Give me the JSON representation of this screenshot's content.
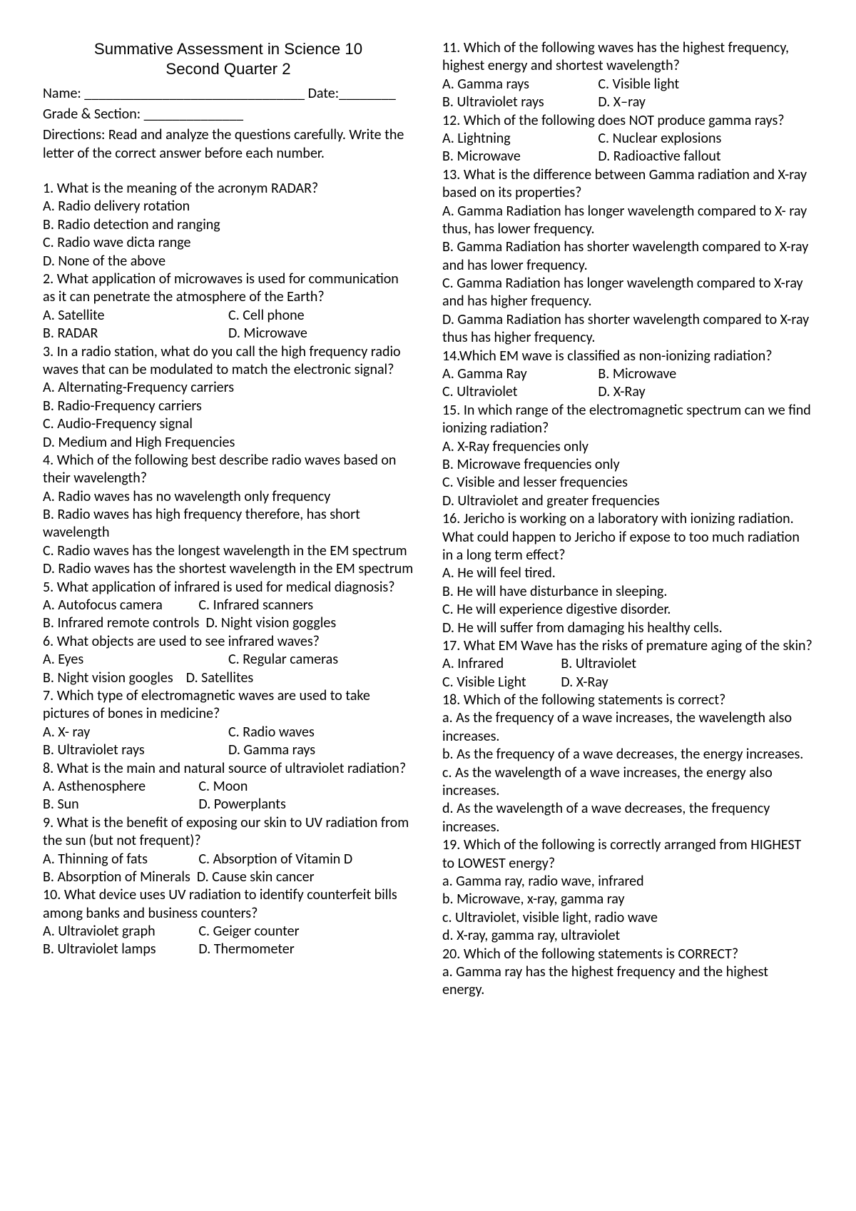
{
  "title_line1": "Summative Assessment in Science 10",
  "title_line2": "Second Quarter 2",
  "name_label": "Name: _______________________________",
  "date_label": "Date:________",
  "grade_label": "Grade & Section: ______________",
  "directions": "Directions: Read and analyze the questions carefully. Write the letter of the correct answer before each number.",
  "q1": "1. What is the meaning of the acronym RADAR?",
  "q1a": "A. Radio delivery rotation",
  "q1b": "B. Radio detection and ranging",
  "q1c": "C. Radio wave dicta range",
  "q1d": "D. None of the above",
  "q2": " 2. What application of microwaves is used for communication as it can penetrate the atmosphere of the Earth?",
  "q2a": "A. Satellite",
  "q2b": "B. RADAR",
  "q2c": "C. Cell phone",
  "q2d": "D. Microwave",
  "q3": " 3. In a radio station, what do you call the high frequency radio waves that can be modulated to match the electronic signal?",
  "q3a": "A. Alternating-Frequency carriers",
  "q3b": " B. Radio-Frequency carriers",
  "q3c": " C. Audio-Frequency signal",
  "q3d": " D. Medium and High Frequencies",
  "q4": "4. Which of the following best describe radio waves based on their wavelength?",
  "q4a": "A. Radio waves has no wavelength only frequency",
  "q4b": " B. Radio waves has high frequency therefore, has short wavelength",
  "q4c": "C. Radio waves has the longest wavelength in the EM spectrum",
  "q4d": "D. Radio waves has the shortest wavelength in the EM spectrum",
  "q5": "5. What application of infrared is used for medical diagnosis?",
  "q5a": "A. Autofocus camera",
  "q5b": "B. Infrared remote controls",
  "q5c": "C. Infrared scanners",
  "q5d": "D. Night vision goggles",
  "q6": "6. What objects are used to see infrared waves?",
  "q6a": "A. Eyes",
  "q6b": "B. Night vision googles",
  "q6c": "C. Regular cameras",
  "q6d": "D. Satellites",
  "q7": " 7. Which type of electromagnetic waves are used to take pictures of bones in medicine?",
  "q7a": " A. X- ray",
  "q7b": " B. Ultraviolet rays",
  "q7c": "C. Radio waves",
  "q7d": "D. Gamma rays",
  "q8": "8. What is the main and natural source of ultraviolet radiation?",
  "q8a": "A. Asthenosphere",
  "q8b": "B. Sun",
  "q8c": "C. Moon",
  "q8d": "D. Powerplants",
  "q9": "9. What is the benefit of exposing our skin to UV radiation from the sun (but not frequent)?",
  "q9a": " A. Thinning of fats",
  "q9b": " B. Absorption of Minerals",
  "q9c": "C. Absorption of Vitamin D",
  "q9d": "D. Cause skin cancer",
  "q10": "10. What device uses UV radiation to identify counterfeit bills among banks and business counters?",
  "q10a": "A. Ultraviolet graph",
  "q10b": "B. Ultraviolet lamps",
  "q10c": "C. Geiger counter",
  "q10d": "D. Thermometer",
  "q11": "11. Which of the following waves has the highest frequency, highest energy and shortest wavelength?",
  "q11a": "A. Gamma rays",
  "q11b": "B. Ultraviolet rays",
  "q11c": "C. Visible light",
  "q11d": "D. X–ray",
  "q12": "12. Which of the following does NOT produce gamma rays?",
  "q12a": " A. Lightning",
  "q12b": "B. Microwave",
  "q12c": "C. Nuclear explosions",
  "q12d": "D. Radioactive fallout",
  "q13": "13. What is the difference between Gamma radiation and X-ray based on its properties?",
  "q13a": "A. Gamma Radiation has longer wavelength compared to X- ray thus, has lower frequency.",
  "q13b": " B. Gamma Radiation has shorter wavelength compared to X-ray and has lower frequency.",
  "q13c": " C. Gamma Radiation has longer wavelength compared to X-ray and has higher frequency.",
  "q13d": "D. Gamma Radiation has shorter wavelength compared to X-ray thus has higher frequency.",
  "q14": "14.Which EM wave is classified as non-ionizing radiation?",
  "q14a": "A. Gamma Ray",
  "q14b": "B. Microwave",
  "q14c": "C. Ultraviolet",
  "q14d": "D. X-Ray",
  "q15": " 15. In which range of the electromagnetic spectrum can we find ionizing radiation?",
  "q15a": "A. X-Ray frequencies only",
  "q15b": " B. Microwave frequencies only",
  "q15c": "C. Visible and lesser frequencies",
  "q15d": "D. Ultraviolet and greater frequencies",
  "q16": "  16. Jericho is working on a laboratory with ionizing radiation. What could happen to Jericho if expose to too much radiation in a long term effect?",
  "q16a": " A. He will feel tired.",
  "q16b": " B. He will have disturbance in sleeping.",
  "q16c": " C. He will experience digestive disorder.",
  "q16d": " D. He will suffer from damaging his healthy cells.",
  "q17": "17. What EM Wave has the risks of premature aging of the skin?",
  "q17a": " A. Infrared",
  "q17b": "B. Ultraviolet",
  "q17c": " C. Visible Light",
  "q17d": "D. X-Ray",
  "q18": " 18. Which of the following statements is correct?",
  "q18a": "a. As the frequency of a wave increases, the wavelength also increases.",
  "q18b": " b. As the frequency of a wave decreases, the energy increases.",
  "q18c": " c. As the wavelength of a wave increases, the energy also increases.",
  "q18d": "d. As the wavelength of a wave decreases, the frequency increases.",
  "q19": "19. Which of the following is correctly arranged from HIGHEST to LOWEST energy?",
  "q19a": "a. Gamma ray, radio wave, infrared",
  "q19b": "b. Microwave, x-ray, gamma ray",
  "q19c": "c. Ultraviolet, visible light, radio wave",
  "q19d": " d. X-ray, gamma ray, ultraviolet",
  "q20": "20. Which of the following statements is CORRECT?",
  "q20a": " a. Gamma ray has the highest frequency and the highest energy."
}
